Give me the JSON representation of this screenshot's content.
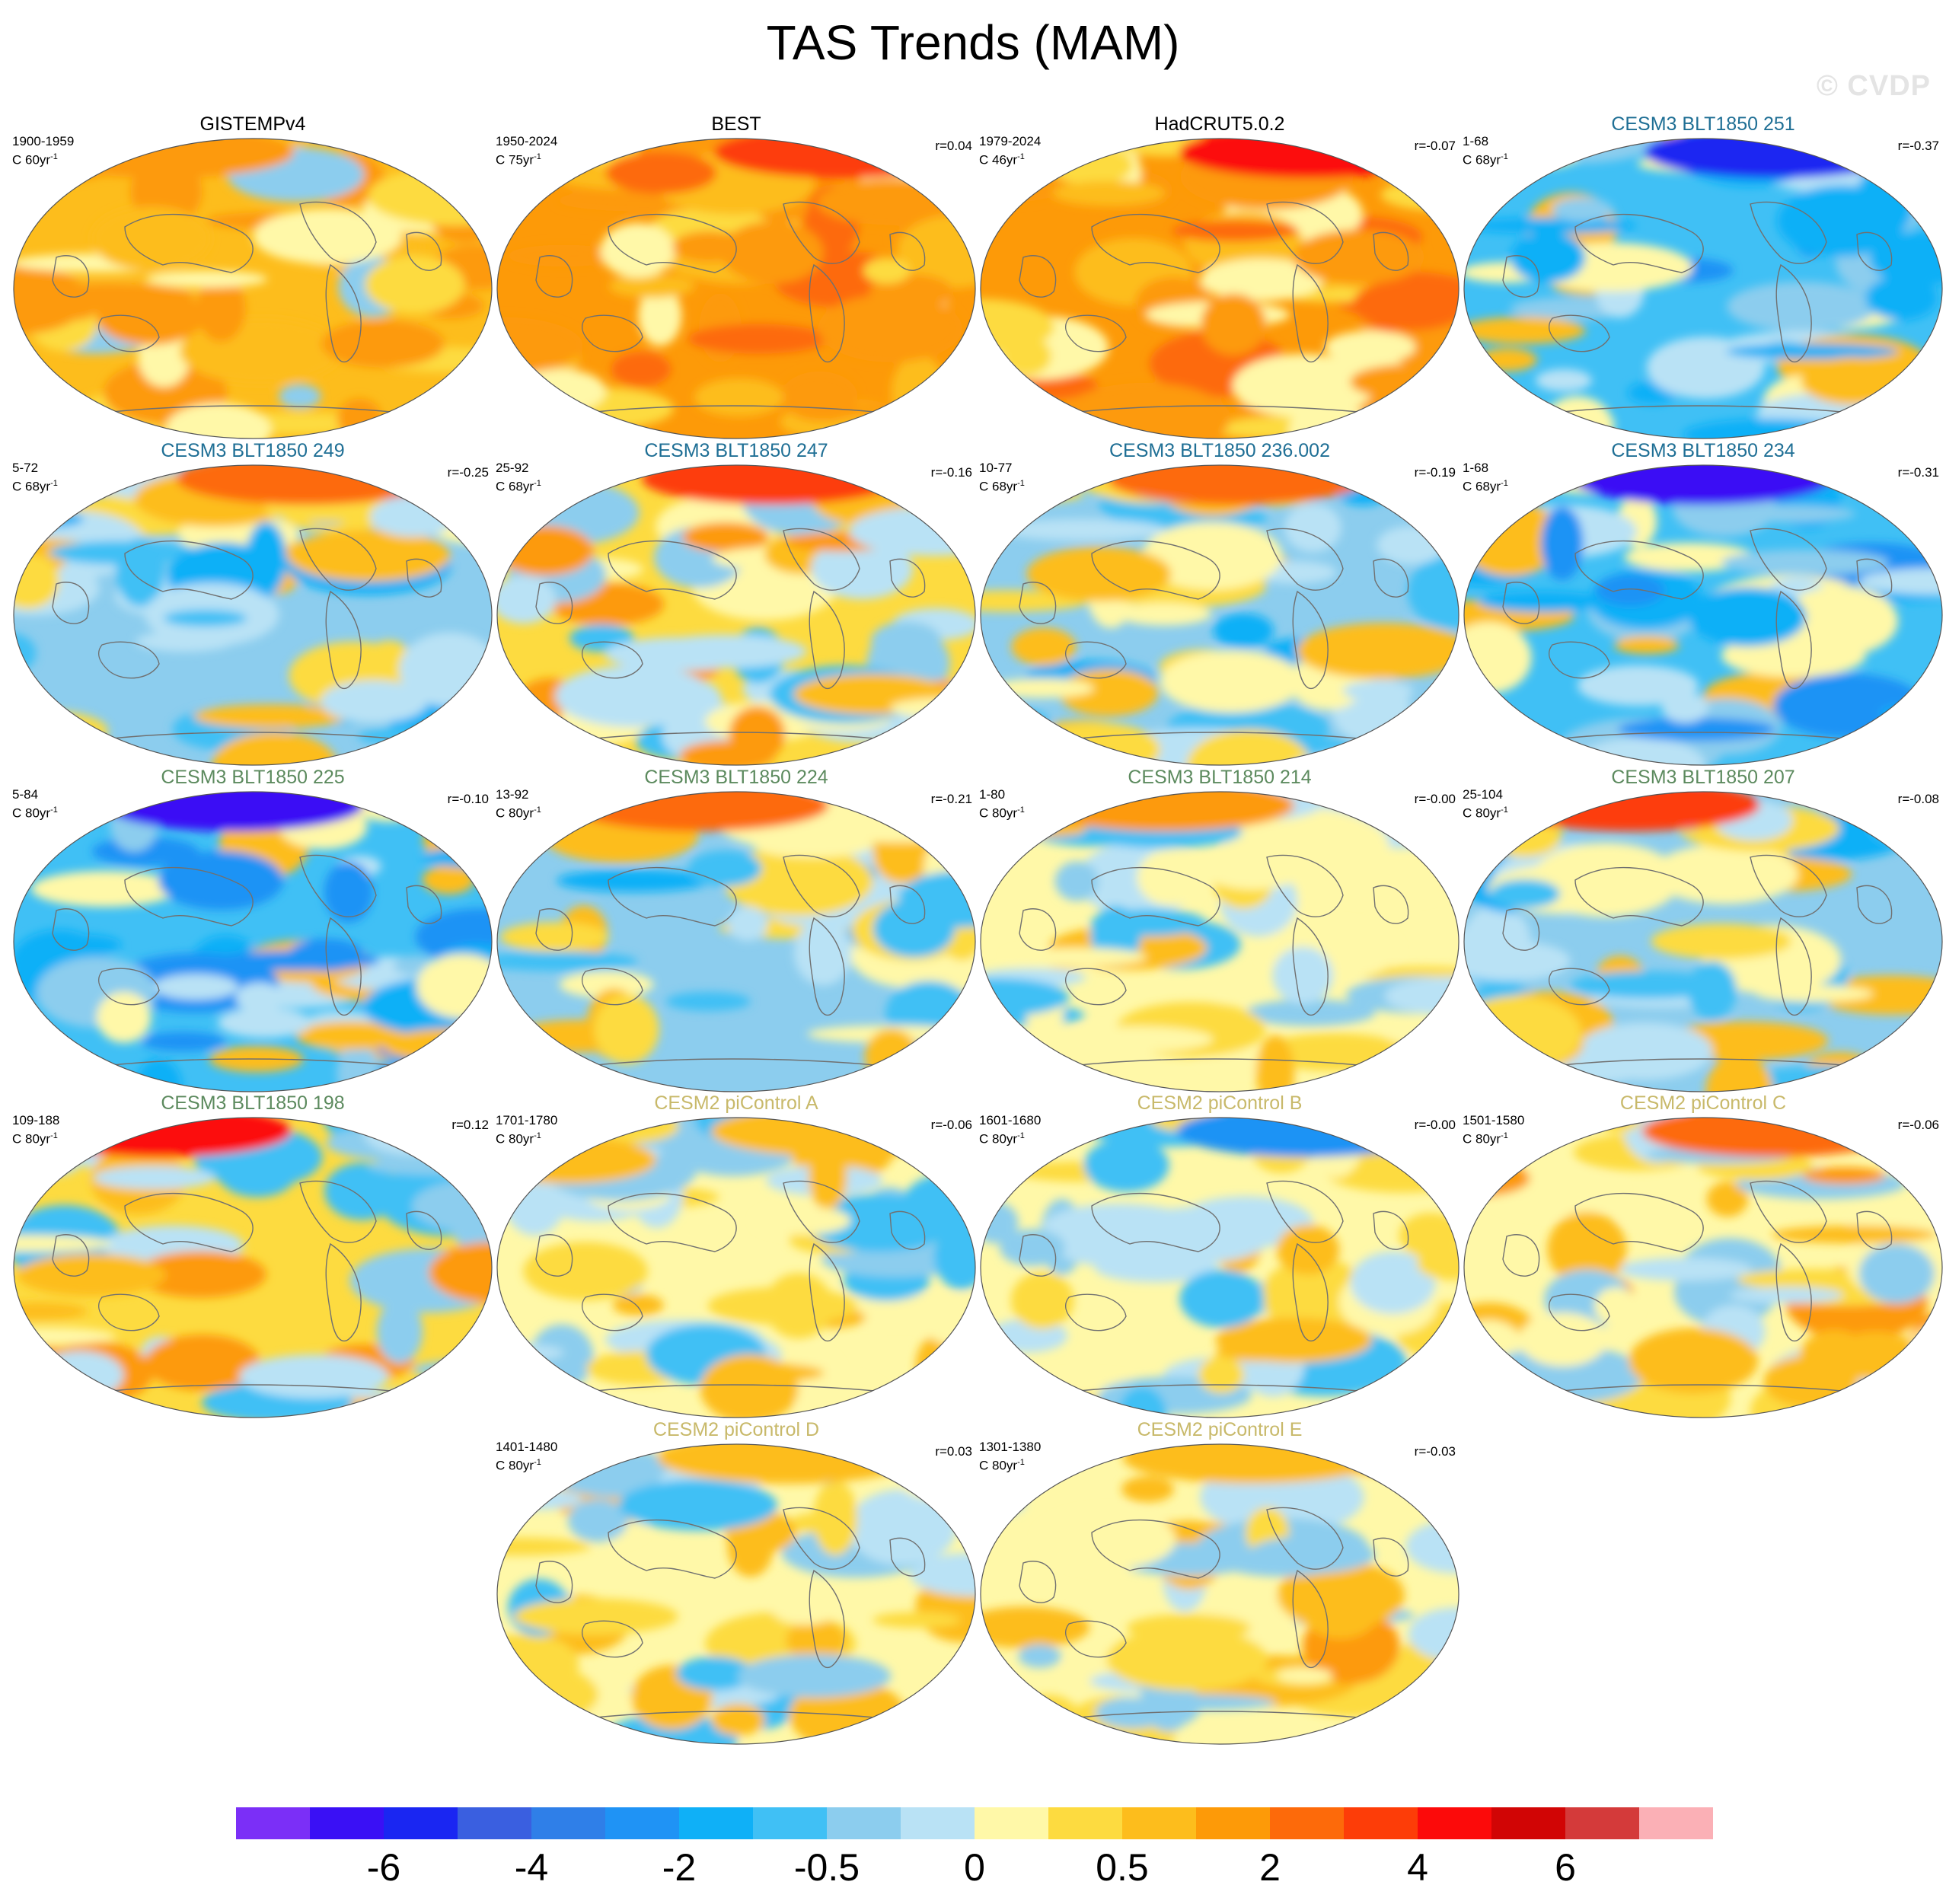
{
  "title": "TAS Trends (MAM)",
  "watermark": "© CVDP",
  "panels": [
    {
      "title": "GISTEMPv4",
      "years": "1900-1959",
      "units": "C 60yr",
      "r": "",
      "title_color": "#000000"
    },
    {
      "title": "BEST",
      "years": "1950-2024",
      "units": "C 75yr",
      "r": "r=0.04",
      "title_color": "#000000"
    },
    {
      "title": "HadCRUT5.0.2",
      "years": "1979-2024",
      "units": "C 46yr",
      "r": "r=-0.07",
      "title_color": "#000000"
    },
    {
      "title": "CESM3 BLT1850 251",
      "years": "1-68",
      "units": "C 68yr",
      "r": "r=-0.37",
      "title_color": "#1f6f95"
    },
    {
      "title": "CESM3 BLT1850 249",
      "years": "5-72",
      "units": "C 68yr",
      "r": "r=-0.25",
      "title_color": "#1f6f95"
    },
    {
      "title": "CESM3 BLT1850 247",
      "years": "25-92",
      "units": "C 68yr",
      "r": "r=-0.16",
      "title_color": "#1f6f95"
    },
    {
      "title": "CESM3 BLT1850 236.002",
      "years": "10-77",
      "units": "C 68yr",
      "r": "r=-0.19",
      "title_color": "#1f6f95"
    },
    {
      "title": "CESM3 BLT1850 234",
      "years": "1-68",
      "units": "C 68yr",
      "r": "r=-0.31",
      "title_color": "#1f6f95"
    },
    {
      "title": "CESM3 BLT1850 225",
      "years": "5-84",
      "units": "C 80yr",
      "r": "r=-0.10",
      "title_color": "#5c8a5e"
    },
    {
      "title": "CESM3 BLT1850 224",
      "years": "13-92",
      "units": "C 80yr",
      "r": "r=-0.21",
      "title_color": "#5c8a5e"
    },
    {
      "title": "CESM3 BLT1850 214",
      "years": "1-80",
      "units": "C 80yr",
      "r": "r=-0.00",
      "title_color": "#5c8a5e"
    },
    {
      "title": "CESM3 BLT1850 207",
      "years": "25-104",
      "units": "C 80yr",
      "r": "r=-0.08",
      "title_color": "#5c8a5e"
    },
    {
      "title": "CESM3 BLT1850 198",
      "years": "109-188",
      "units": "C 80yr",
      "r": "r=0.12",
      "title_color": "#5c8a5e"
    },
    {
      "title": "CESM2 piControl A",
      "years": "1701-1780",
      "units": "C 80yr",
      "r": "r=-0.06",
      "title_color": "#c8b96a"
    },
    {
      "title": "CESM2 piControl B",
      "years": "1601-1680",
      "units": "C 80yr",
      "r": "r=-0.00",
      "title_color": "#c8b96a"
    },
    {
      "title": "CESM2 piControl C",
      "years": "1501-1580",
      "units": "C 80yr",
      "r": "r=-0.06",
      "title_color": "#c8b96a"
    },
    {
      "title": "CESM2 piControl D",
      "years": "1401-1480",
      "units": "C 80yr",
      "r": "r=0.03",
      "title_color": "#c8b96a"
    },
    {
      "title": "CESM2 piControl E",
      "years": "1301-1380",
      "units": "C 80yr",
      "r": "r=-0.03",
      "title_color": "#c8b96a"
    }
  ],
  "chart_data": {
    "type": "heatmap",
    "title": "TAS Trends (MAM)",
    "colorbar": {
      "colors": [
        "#7b2ff7",
        "#3a10f5",
        "#1a26f2",
        "#3a5fe0",
        "#2f7fe8",
        "#1f93f5",
        "#0fb0f7",
        "#40c0f5",
        "#8ccdee",
        "#b9e2f5",
        "#fff8a8",
        "#fddb40",
        "#fdbd1c",
        "#fd9a08",
        "#fd6a0a",
        "#fd3d08",
        "#fc0a0a",
        "#d10505",
        "#d43a3a",
        "#fbb0b6"
      ],
      "tick_labels": [
        "-6",
        "-4",
        "-2",
        "-0.5",
        "0",
        "0.5",
        "2",
        "4",
        "6"
      ]
    },
    "panel_fields": [
      {
        "regime": "warm",
        "polar": "#fd9a08"
      },
      {
        "regime": "hot",
        "polar": "#fd3d08"
      },
      {
        "regime": "hot",
        "polar": "#fc0a0a"
      },
      {
        "regime": "cold",
        "polar": "#1a26f2"
      },
      {
        "regime": "mixed-cold",
        "polar": "#fd6a0a"
      },
      {
        "regime": "mixed-warm",
        "polar": "#fd3d08"
      },
      {
        "regime": "mixed-cold",
        "polar": "#fd6a0a"
      },
      {
        "regime": "cold",
        "polar": "#3a10f5"
      },
      {
        "regime": "cold",
        "polar": "#3a10f5"
      },
      {
        "regime": "mixed-cold",
        "polar": "#fd6a0a"
      },
      {
        "regime": "mixed",
        "polar": "#fd9a08"
      },
      {
        "regime": "mixed-cold",
        "polar": "#fd3d08"
      },
      {
        "regime": "mixed-warm",
        "polar": "#fc0a0a"
      },
      {
        "regime": "neutral",
        "polar": "#fdbd1c"
      },
      {
        "regime": "neutral",
        "polar": "#1f93f5"
      },
      {
        "regime": "neutral-warm",
        "polar": "#fd6a0a"
      },
      {
        "regime": "neutral",
        "polar": "#fdbd1c"
      },
      {
        "regime": "neutral-warm",
        "polar": "#fdbd1c"
      }
    ]
  }
}
